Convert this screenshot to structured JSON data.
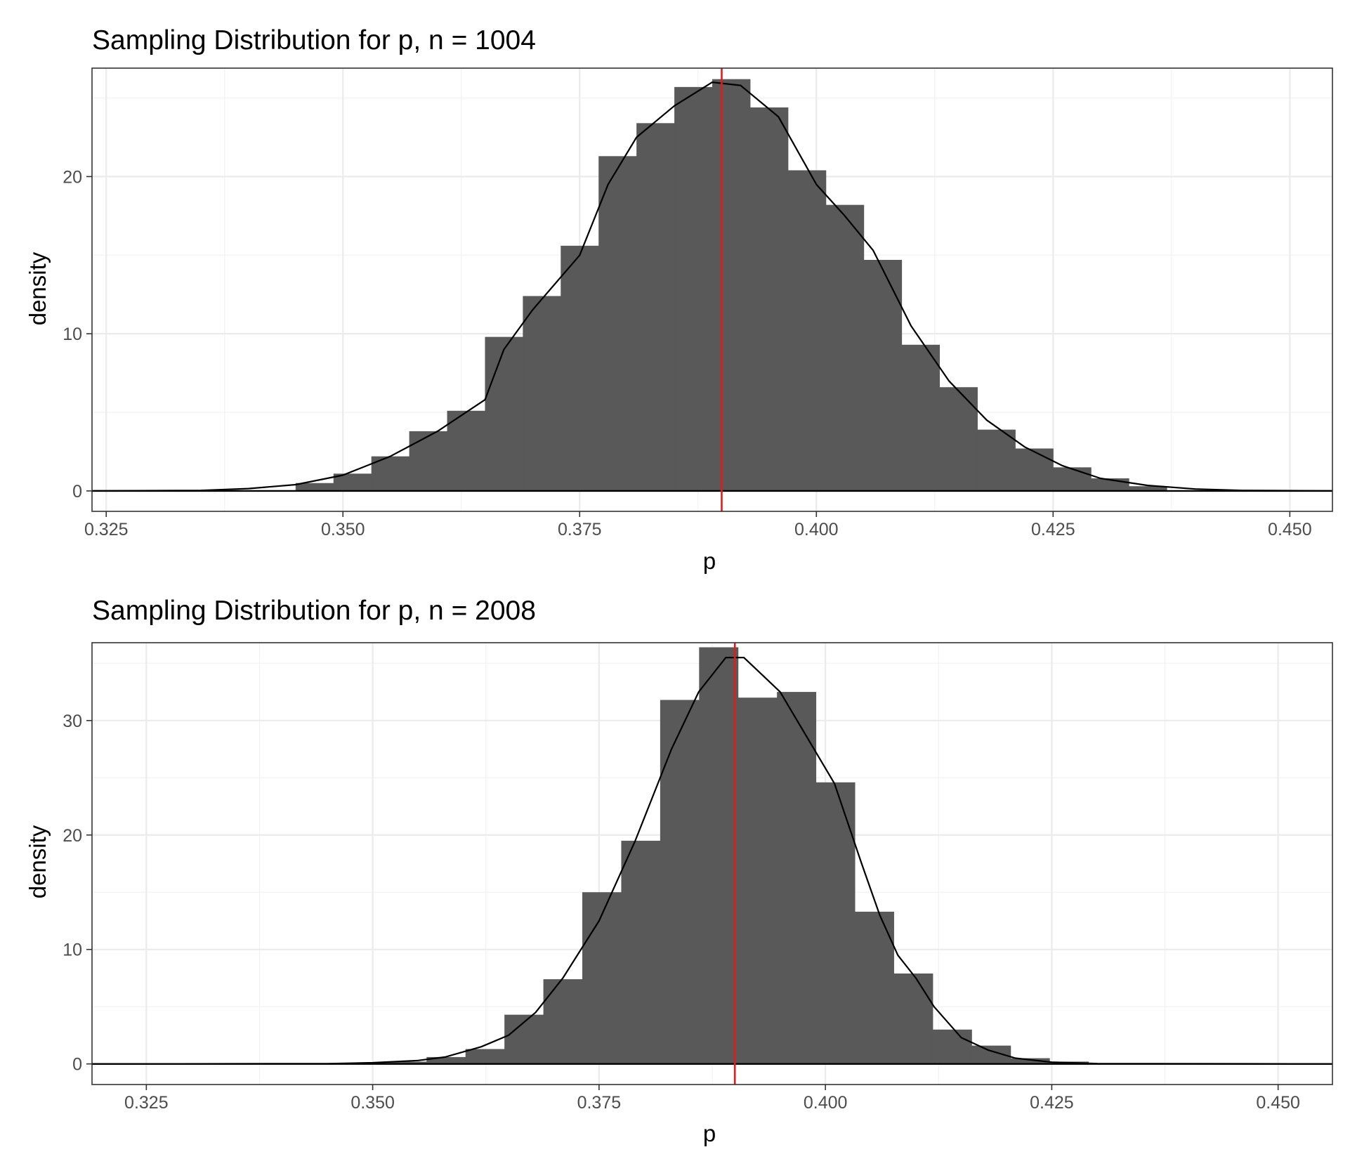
{
  "chart_data": [
    {
      "type": "bar",
      "title": "Sampling Distribution for p, n = 1004",
      "xlabel": "p",
      "ylabel": "density",
      "xlim": [
        0.3235,
        0.4545
      ],
      "ylim": [
        -1.3,
        26.9
      ],
      "x_ticks": [
        "0.325",
        "0.350",
        "0.375",
        "0.400",
        "0.425",
        "0.450"
      ],
      "y_ticks": [
        "0",
        "10",
        "20"
      ],
      "grid": true,
      "bin_width": 0.004,
      "bins": [
        {
          "x": 0.347,
          "value": 0.5
        },
        {
          "x": 0.351,
          "value": 1.1
        },
        {
          "x": 0.355,
          "value": 2.2
        },
        {
          "x": 0.359,
          "value": 3.8
        },
        {
          "x": 0.363,
          "value": 5.1
        },
        {
          "x": 0.367,
          "value": 9.8
        },
        {
          "x": 0.371,
          "value": 12.4
        },
        {
          "x": 0.375,
          "value": 15.6
        },
        {
          "x": 0.379,
          "value": 21.3
        },
        {
          "x": 0.383,
          "value": 23.4
        },
        {
          "x": 0.387,
          "value": 25.7
        },
        {
          "x": 0.391,
          "value": 26.2
        },
        {
          "x": 0.395,
          "value": 24.4
        },
        {
          "x": 0.399,
          "value": 20.4
        },
        {
          "x": 0.403,
          "value": 18.2
        },
        {
          "x": 0.407,
          "value": 14.7
        },
        {
          "x": 0.411,
          "value": 9.3
        },
        {
          "x": 0.415,
          "value": 6.6
        },
        {
          "x": 0.419,
          "value": 3.9
        },
        {
          "x": 0.423,
          "value": 2.7
        },
        {
          "x": 0.427,
          "value": 1.5
        },
        {
          "x": 0.431,
          "value": 0.8
        },
        {
          "x": 0.435,
          "value": 0.3
        }
      ],
      "density_curve": [
        [
          0.3235,
          0.0
        ],
        [
          0.335,
          0.03
        ],
        [
          0.34,
          0.15
        ],
        [
          0.345,
          0.4
        ],
        [
          0.35,
          1.0
        ],
        [
          0.355,
          2.2
        ],
        [
          0.36,
          3.8
        ],
        [
          0.365,
          5.8
        ],
        [
          0.367,
          9.0
        ],
        [
          0.37,
          11.5
        ],
        [
          0.375,
          15.0
        ],
        [
          0.378,
          19.5
        ],
        [
          0.381,
          22.5
        ],
        [
          0.385,
          24.5
        ],
        [
          0.389,
          26.0
        ],
        [
          0.392,
          25.8
        ],
        [
          0.396,
          23.8
        ],
        [
          0.4,
          19.5
        ],
        [
          0.403,
          17.5
        ],
        [
          0.406,
          15.3
        ],
        [
          0.41,
          10.5
        ],
        [
          0.414,
          7.0
        ],
        [
          0.418,
          4.5
        ],
        [
          0.422,
          2.8
        ],
        [
          0.426,
          1.6
        ],
        [
          0.43,
          0.8
        ],
        [
          0.435,
          0.35
        ],
        [
          0.44,
          0.12
        ],
        [
          0.445,
          0.03
        ],
        [
          0.4545,
          0.0
        ]
      ],
      "reference_line_x": 0.39,
      "reference_line_color": "#e41a1c",
      "bar_color": "#595959"
    },
    {
      "type": "bar",
      "title": "Sampling Distribution for p, n = 2008",
      "xlabel": "p",
      "ylabel": "density",
      "xlim": [
        0.319,
        0.456
      ],
      "ylim": [
        -1.8,
        36.8
      ],
      "x_ticks": [
        "0.325",
        "0.350",
        "0.375",
        "0.400",
        "0.425",
        "0.450"
      ],
      "y_ticks": [
        "0",
        "10",
        "20",
        "30"
      ],
      "grid": true,
      "bin_width": 0.0043,
      "bins": [
        {
          "x": 0.3495,
          "value": 0.1
        },
        {
          "x": 0.3538,
          "value": 0.2
        },
        {
          "x": 0.3581,
          "value": 0.6
        },
        {
          "x": 0.3624,
          "value": 1.3
        },
        {
          "x": 0.3667,
          "value": 4.3
        },
        {
          "x": 0.371,
          "value": 7.4
        },
        {
          "x": 0.3753,
          "value": 15.0
        },
        {
          "x": 0.3796,
          "value": 19.5
        },
        {
          "x": 0.3839,
          "value": 31.8
        },
        {
          "x": 0.3882,
          "value": 36.4
        },
        {
          "x": 0.3925,
          "value": 32.0
        },
        {
          "x": 0.3968,
          "value": 32.5
        },
        {
          "x": 0.4011,
          "value": 24.6
        },
        {
          "x": 0.4054,
          "value": 13.3
        },
        {
          "x": 0.4097,
          "value": 7.9
        },
        {
          "x": 0.414,
          "value": 3.0
        },
        {
          "x": 0.4183,
          "value": 1.6
        },
        {
          "x": 0.4226,
          "value": 0.5
        },
        {
          "x": 0.4269,
          "value": 0.2
        }
      ],
      "density_curve": [
        [
          0.319,
          0.0
        ],
        [
          0.345,
          0.02
        ],
        [
          0.35,
          0.1
        ],
        [
          0.355,
          0.3
        ],
        [
          0.358,
          0.6
        ],
        [
          0.362,
          1.5
        ],
        [
          0.365,
          2.5
        ],
        [
          0.368,
          4.5
        ],
        [
          0.371,
          7.5
        ],
        [
          0.375,
          12.5
        ],
        [
          0.379,
          19.5
        ],
        [
          0.383,
          27.5
        ],
        [
          0.386,
          32.5
        ],
        [
          0.389,
          35.5
        ],
        [
          0.391,
          35.5
        ],
        [
          0.393,
          34.0
        ],
        [
          0.395,
          32.5
        ],
        [
          0.398,
          28.5
        ],
        [
          0.401,
          24.5
        ],
        [
          0.404,
          17.5
        ],
        [
          0.406,
          13.0
        ],
        [
          0.408,
          9.5
        ],
        [
          0.41,
          7.5
        ],
        [
          0.412,
          5.0
        ],
        [
          0.415,
          2.3
        ],
        [
          0.418,
          1.2
        ],
        [
          0.421,
          0.5
        ],
        [
          0.425,
          0.15
        ],
        [
          0.43,
          0.03
        ],
        [
          0.456,
          0.0
        ]
      ],
      "reference_line_x": 0.39,
      "reference_line_color": "#e41a1c",
      "bar_color": "#595959"
    }
  ]
}
